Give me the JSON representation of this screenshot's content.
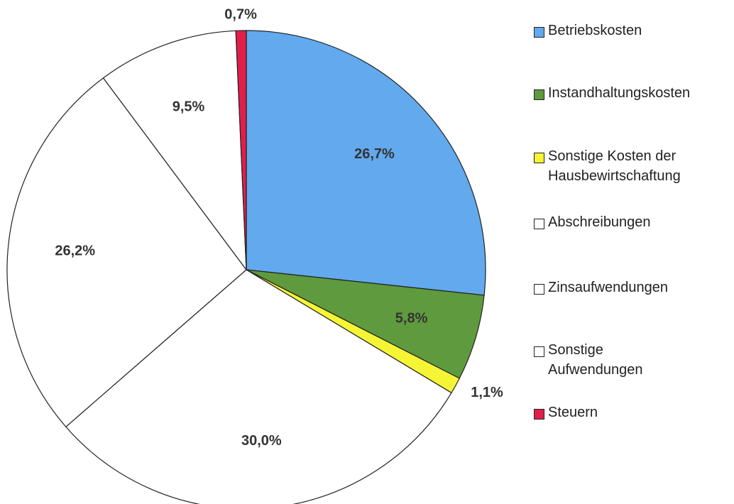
{
  "chart_data": {
    "type": "pie",
    "categories": [
      "Betriebskosten",
      "Instandhaltungskosten",
      "Sonstige Kosten der Hausbewirtschaftung",
      "Abschreibungen",
      "Zinsaufwendungen",
      "Sonstige Aufwendungen",
      "Steuern"
    ],
    "values": [
      26.7,
      5.8,
      1.1,
      30.0,
      26.2,
      9.5,
      0.7
    ],
    "value_labels": [
      "26,7%",
      "5,8%",
      "1,1%",
      "30,0%",
      "26,2%",
      "9,5%",
      "0,7%"
    ],
    "colors": [
      "#62a9ee",
      "#5f9a3e",
      "#f6f535",
      "#ffffff",
      "#ffffff",
      "#ffffff",
      "#e01f4b"
    ],
    "legend": "right"
  }
}
